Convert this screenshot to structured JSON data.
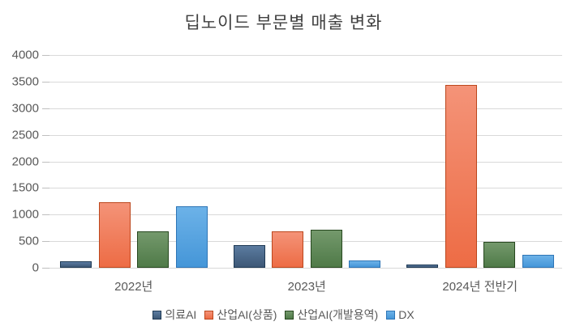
{
  "chart_data": {
    "type": "bar",
    "title": "딥노이드 부문별 매출 변화",
    "categories": [
      "2022년",
      "2023년",
      "2024년 전반기"
    ],
    "series": [
      {
        "name": "의료AI",
        "values": [
          120,
          430,
          60
        ],
        "fill": "#3d5876",
        "fill_light": "#5b7ba0",
        "border": "#1f3a55"
      },
      {
        "name": "산업AI(상품)",
        "values": [
          1230,
          690,
          3430
        ],
        "fill": "#ed6c45",
        "fill_light": "#f49378",
        "border": "#bc471d"
      },
      {
        "name": "산업AI(개발용역)",
        "values": [
          690,
          720,
          490
        ],
        "fill": "#4f7a48",
        "fill_light": "#74996c",
        "border": "#27481f"
      },
      {
        "name": "DX",
        "values": [
          1150,
          130,
          250
        ],
        "fill": "#4596d8",
        "fill_light": "#6cb2e8",
        "border": "#2e75b6"
      }
    ],
    "ylim": [
      0,
      4000
    ],
    "yticks": [
      0,
      500,
      1000,
      1500,
      2000,
      2500,
      3000,
      3500,
      4000
    ],
    "grid": true,
    "legend_position": "bottom",
    "colors": {
      "title_text": "#3f3f3f",
      "axis_text": "#595959",
      "gridline": "#d9d9d9"
    }
  }
}
